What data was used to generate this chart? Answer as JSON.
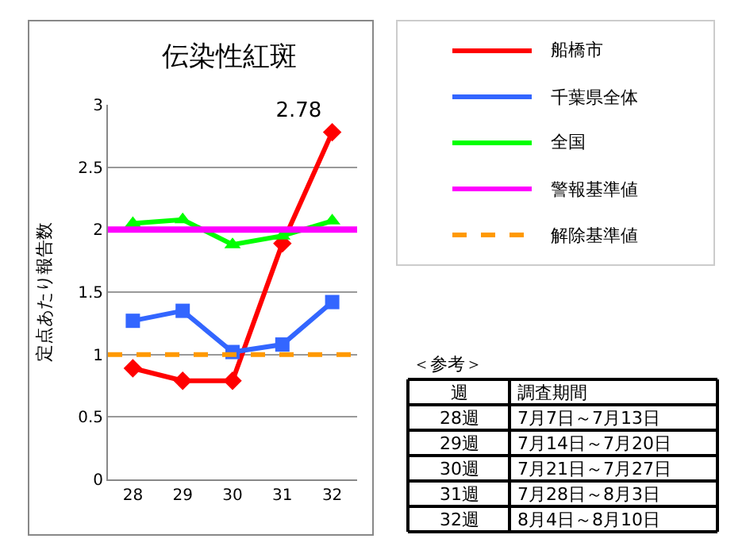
{
  "chart_data": {
    "type": "line",
    "title": "伝染性紅斑",
    "ylabel": "定点あたり報告数",
    "categories": [
      "28",
      "29",
      "30",
      "31",
      "32"
    ],
    "series": [
      {
        "name": "船橋市",
        "color": "#ff0000",
        "marker": "diamond",
        "values": [
          0.89,
          0.79,
          0.79,
          1.89,
          2.78
        ],
        "value_labels": [
          null,
          null,
          null,
          null,
          "2.78"
        ]
      },
      {
        "name": "千葉県全体",
        "color": "#3366ff",
        "marker": "square",
        "values": [
          1.27,
          1.35,
          1.02,
          1.08,
          1.42
        ]
      },
      {
        "name": "全国",
        "color": "#00ff00",
        "marker": "triangle",
        "values": [
          2.05,
          2.08,
          1.88,
          1.95,
          2.07
        ]
      }
    ],
    "ref_lines": [
      {
        "axis": "y",
        "value": 2,
        "label": "警報基準値",
        "color": "#ff00ff",
        "line_style": "solid"
      },
      {
        "axis": "y",
        "value": 1,
        "label": "解除基準値",
        "color": "#ff9900",
        "line_style": "dashed"
      }
    ],
    "ylim": [
      0,
      3
    ],
    "yticks": [
      0,
      0.5,
      1,
      1.5,
      2,
      2.5,
      3
    ],
    "grid": "y",
    "legend": "right",
    "annotations": [
      "＜参考＞",
      "週",
      "調査期間",
      "28週",
      "7月7日～7月13日",
      "29週",
      "7月14日～7月20日",
      "30週",
      "7月21日～7月27日",
      "31週",
      "7月28日～8月3日",
      "32週",
      "8月4日～8月10日"
    ]
  }
}
